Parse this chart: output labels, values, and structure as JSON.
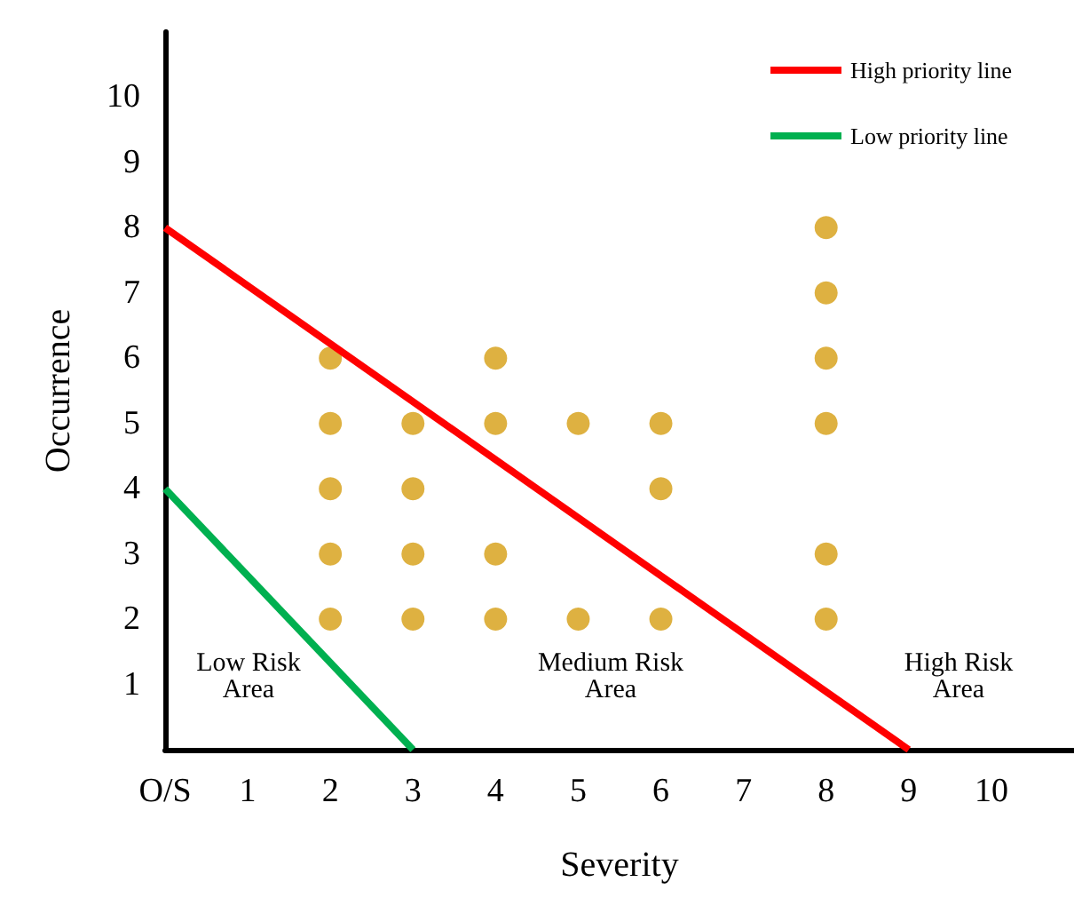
{
  "chart_data": {
    "type": "scatter",
    "xlabel": "Severity",
    "ylabel": "Occurrence",
    "xlim": [
      0,
      11
    ],
    "ylim": [
      0,
      11
    ],
    "xticks": [
      {
        "value": 0,
        "label": "O/S"
      },
      1,
      2,
      3,
      4,
      5,
      6,
      7,
      8,
      9,
      10
    ],
    "yticks": [
      1,
      2,
      3,
      4,
      5,
      6,
      7,
      8,
      9,
      10
    ],
    "grid": false,
    "legend": "top right",
    "marker": "circle",
    "series": [
      {
        "color": "#d69e12",
        "x": [
          2,
          2,
          2,
          2,
          2,
          3,
          3,
          3,
          3,
          4,
          4,
          4,
          4,
          5,
          5,
          6,
          6,
          6,
          8,
          8,
          8,
          8,
          8,
          8
        ],
        "values": [
          6,
          5,
          4,
          3,
          2,
          5,
          4,
          3,
          2,
          6,
          5,
          3,
          2,
          5,
          2,
          5,
          4,
          2,
          8,
          7,
          6,
          5,
          3,
          2
        ]
      },
      {
        "type": "line",
        "name": "High priority line",
        "color": "#ff0000",
        "line_style": "solid",
        "marker": "none",
        "x": [
          0,
          9
        ],
        "values": [
          8,
          0
        ]
      },
      {
        "type": "line",
        "name": "Low priority line",
        "color": "#00b050",
        "line_style": "solid",
        "marker": "none",
        "x": [
          0,
          3
        ],
        "values": [
          4,
          0
        ]
      }
    ],
    "annotations": [
      "Low Risk\nArea",
      "Medium Risk\nArea",
      "High Risk\nArea"
    ]
  }
}
